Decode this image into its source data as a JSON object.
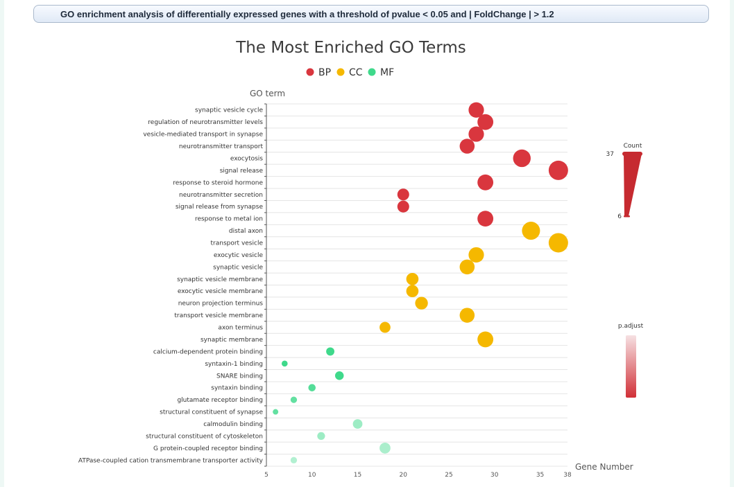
{
  "header": {
    "text": "GO enrichment analysis of differentially expressed genes with a threshold of pvalue < 0.05 and | FoldChange | > 1.2"
  },
  "chart_data": {
    "type": "scatter",
    "title": "The Most Enriched GO Terms",
    "xlabel": "Gene Number",
    "ylabel": "GO term",
    "xlim": [
      5,
      38
    ],
    "xticks": [
      5,
      10,
      15,
      20,
      25,
      30,
      35,
      38
    ],
    "grid": true,
    "legend": {
      "position": "top",
      "items": [
        {
          "name": "BP",
          "color": "#d9363e"
        },
        {
          "name": "CC",
          "color": "#f5b800"
        },
        {
          "name": "MF",
          "color": "#3fd98b"
        }
      ]
    },
    "size_legend": {
      "title": "Count",
      "max_label": "37",
      "min_label": "6"
    },
    "color_legend": {
      "title": "p.adjust"
    },
    "points": [
      {
        "term": "synaptic vesicle cycle",
        "category": "BP",
        "gene_number": 28,
        "count": 28,
        "p_adjust_level": 1.0
      },
      {
        "term": "regulation of neurotransmitter levels",
        "category": "BP",
        "gene_number": 29,
        "count": 29,
        "p_adjust_level": 1.0
      },
      {
        "term": "vesicle-mediated transport in synapse",
        "category": "BP",
        "gene_number": 28,
        "count": 28,
        "p_adjust_level": 1.0
      },
      {
        "term": "neurotransmitter transport",
        "category": "BP",
        "gene_number": 27,
        "count": 27,
        "p_adjust_level": 1.0
      },
      {
        "term": "exocytosis",
        "category": "BP",
        "gene_number": 33,
        "count": 33,
        "p_adjust_level": 1.0
      },
      {
        "term": "signal release",
        "category": "BP",
        "gene_number": 37,
        "count": 37,
        "p_adjust_level": 1.0
      },
      {
        "term": "response to steroid hormone",
        "category": "BP",
        "gene_number": 29,
        "count": 29,
        "p_adjust_level": 1.0
      },
      {
        "term": "neurotransmitter secretion",
        "category": "BP",
        "gene_number": 20,
        "count": 20,
        "p_adjust_level": 1.0
      },
      {
        "term": "signal release from synapse",
        "category": "BP",
        "gene_number": 20,
        "count": 20,
        "p_adjust_level": 1.0
      },
      {
        "term": "response to metal ion",
        "category": "BP",
        "gene_number": 29,
        "count": 29,
        "p_adjust_level": 1.0
      },
      {
        "term": "distal axon",
        "category": "CC",
        "gene_number": 34,
        "count": 34,
        "p_adjust_level": 1.0
      },
      {
        "term": "transport vesicle",
        "category": "CC",
        "gene_number": 37,
        "count": 37,
        "p_adjust_level": 1.0
      },
      {
        "term": "exocytic vesicle",
        "category": "CC",
        "gene_number": 28,
        "count": 28,
        "p_adjust_level": 1.0
      },
      {
        "term": "synaptic vesicle",
        "category": "CC",
        "gene_number": 27,
        "count": 27,
        "p_adjust_level": 1.0
      },
      {
        "term": "synaptic vesicle membrane",
        "category": "CC",
        "gene_number": 21,
        "count": 21,
        "p_adjust_level": 1.0
      },
      {
        "term": "exocytic vesicle membrane",
        "category": "CC",
        "gene_number": 21,
        "count": 21,
        "p_adjust_level": 1.0
      },
      {
        "term": "neuron projection terminus",
        "category": "CC",
        "gene_number": 22,
        "count": 22,
        "p_adjust_level": 1.0
      },
      {
        "term": "transport vesicle membrane",
        "category": "CC",
        "gene_number": 27,
        "count": 27,
        "p_adjust_level": 1.0
      },
      {
        "term": "axon terminus",
        "category": "CC",
        "gene_number": 18,
        "count": 18,
        "p_adjust_level": 1.0
      },
      {
        "term": "synaptic membrane",
        "category": "CC",
        "gene_number": 29,
        "count": 29,
        "p_adjust_level": 1.0
      },
      {
        "term": "calcium-dependent protein binding",
        "category": "MF",
        "gene_number": 12,
        "count": 12,
        "p_adjust_level": 1.0
      },
      {
        "term": "syntaxin-1 binding",
        "category": "MF",
        "gene_number": 7,
        "count": 7,
        "p_adjust_level": 1.0
      },
      {
        "term": "SNARE binding",
        "category": "MF",
        "gene_number": 13,
        "count": 13,
        "p_adjust_level": 1.0
      },
      {
        "term": "syntaxin binding",
        "category": "MF",
        "gene_number": 10,
        "count": 10,
        "p_adjust_level": 0.85
      },
      {
        "term": "glutamate receptor binding",
        "category": "MF",
        "gene_number": 8,
        "count": 8,
        "p_adjust_level": 0.75
      },
      {
        "term": "structural constituent of synapse",
        "category": "MF",
        "gene_number": 6,
        "count": 6,
        "p_adjust_level": 0.75
      },
      {
        "term": "calmodulin binding",
        "category": "MF",
        "gene_number": 15,
        "count": 15,
        "p_adjust_level": 0.35
      },
      {
        "term": "structural constituent of cytoskeleton",
        "category": "MF",
        "gene_number": 11,
        "count": 11,
        "p_adjust_level": 0.35
      },
      {
        "term": "G protein-coupled receptor binding",
        "category": "MF",
        "gene_number": 18,
        "count": 18,
        "p_adjust_level": 0.25
      },
      {
        "term": "ATPase-coupled cation transmembrane transporter activity",
        "category": "MF",
        "gene_number": 8,
        "count": 8,
        "p_adjust_level": 0.2
      }
    ]
  }
}
